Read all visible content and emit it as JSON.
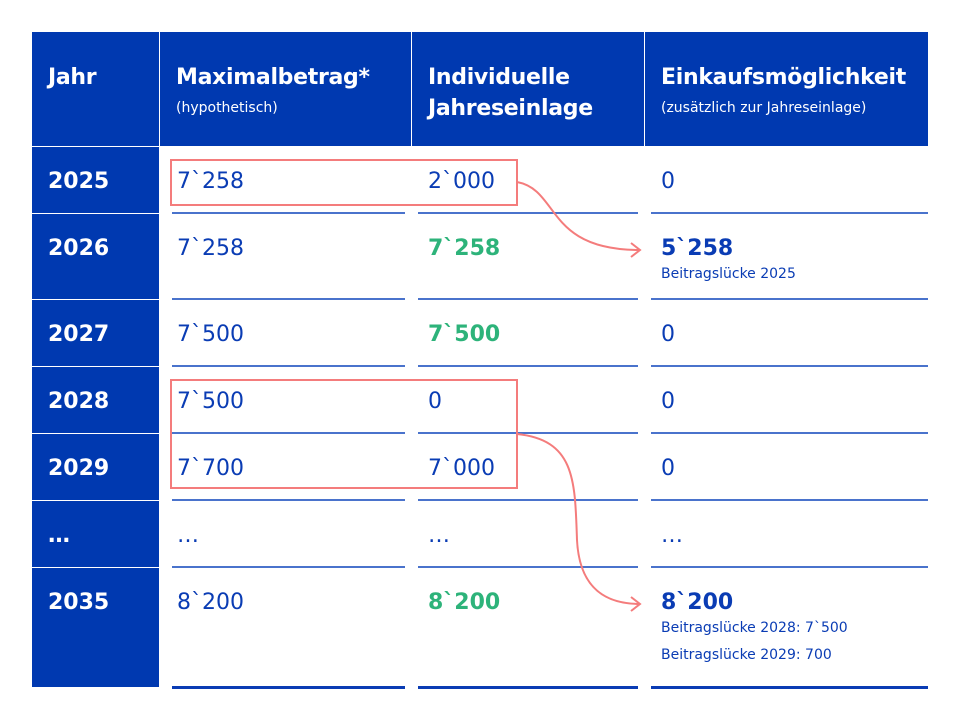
{
  "header": [
    {
      "title": "Jahr",
      "subtitle": ""
    },
    {
      "title": "Maximalbetrag*",
      "subtitle": "(hypothetisch)"
    },
    {
      "title": "Individuelle Jahreseinlage",
      "subtitle": ""
    },
    {
      "title": "Einkaufsmöglichkeit",
      "subtitle": "(zusätzlich zur Jahreseinlage)"
    }
  ],
  "rows": [
    {
      "year": "2025",
      "max": "7`258",
      "einlage": "2`000",
      "einkauf": "0",
      "notes": []
    },
    {
      "year": "2026",
      "max": "7`258",
      "einlage": "7`258",
      "einkauf": "5`258",
      "notes": [
        "Beitragslücke 2025"
      ]
    },
    {
      "year": "2027",
      "max": "7`500",
      "einlage": "7`500",
      "einkauf": "0",
      "notes": []
    },
    {
      "year": "2028",
      "max": "7`500",
      "einlage": "0",
      "einkauf": "0",
      "notes": []
    },
    {
      "year": "2029",
      "max": "7`700",
      "einlage": "7`000",
      "einkauf": "0",
      "notes": []
    },
    {
      "year": "…",
      "max": "…",
      "einlage": "…",
      "einkauf": "…",
      "notes": []
    },
    {
      "year": "2035",
      "max": "8`200",
      "einlage": "8`200",
      "einkauf": "8`200",
      "notes": [
        "Beitragslücke 2028: 7`500",
        "Beitragslücke 2029: 700"
      ]
    }
  ],
  "colors": {
    "primary": "#0039b0",
    "text": "#0a3cb4",
    "highlight": "#2db37a",
    "annotation": "#f47c7c"
  }
}
